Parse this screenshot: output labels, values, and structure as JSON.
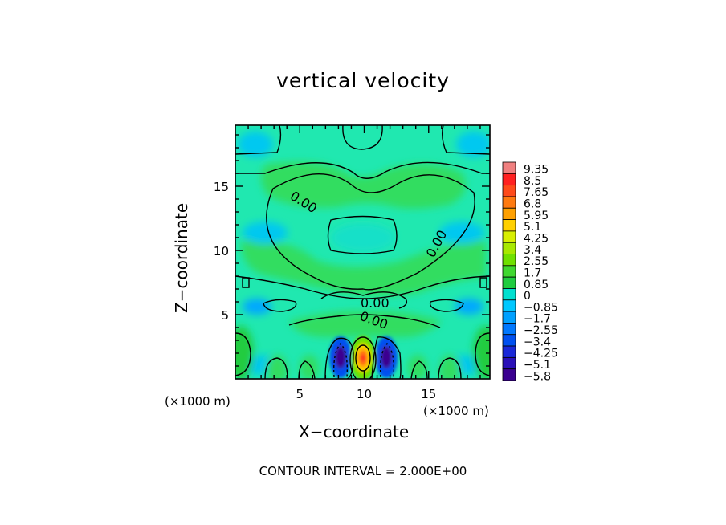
{
  "chart_data": {
    "type": "heatmap",
    "title": "vertical velocity",
    "xlabel": "X−coordinate",
    "ylabel": "Z−coordinate",
    "x_unit": "(×1000 m)",
    "y_unit": "(×1000 m)",
    "xlim": [
      0,
      19.75
    ],
    "ylim": [
      0,
      19.75
    ],
    "x_ticks": [
      5,
      10,
      15
    ],
    "y_ticks": [
      5,
      10,
      15
    ],
    "contour_labels": [
      "0.00",
      "0.00",
      "0.00",
      "0.00"
    ],
    "colorbar": {
      "ticks": [
        "9.35",
        "8.5",
        "7.65",
        "6.8",
        "5.95",
        "5.1",
        "4.25",
        "3.4",
        "2.55",
        "1.7",
        "0.85",
        "0",
        "−0.85",
        "−1.7",
        "−2.55",
        "−3.4",
        "−4.25",
        "−5.1",
        "−5.8"
      ],
      "colors": [
        "#f08080",
        "#ff2020",
        "#ff4a1a",
        "#ff7a10",
        "#ffa000",
        "#ffd000",
        "#d8ee00",
        "#a8e800",
        "#70e000",
        "#40d830",
        "#20cc40",
        "#00e0d0",
        "#00c8ff",
        "#00a0ff",
        "#0078ff",
        "#0050f0",
        "#1a28d8",
        "#2a10b8",
        "#3a0090"
      ]
    },
    "contour_interval_text": "CONTOUR INTERVAL = 2.000E+00"
  }
}
